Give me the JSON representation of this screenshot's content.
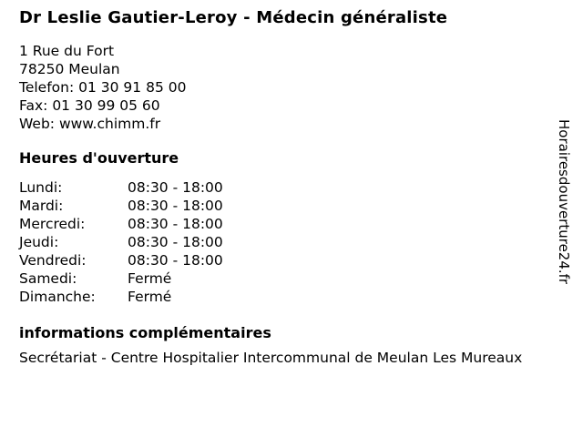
{
  "colors": {
    "background": "#ffffff",
    "text": "#000000"
  },
  "header": {
    "title": "Dr Leslie Gautier-Leroy - Médecin généraliste"
  },
  "contact": {
    "address_line1": "1 Rue du Fort",
    "address_line2": "78250 Meulan",
    "phone_line": "Telefon: 01 30 91 85 00",
    "fax_line": "Fax: 01 30 99 05 60",
    "web_line": "Web: www.chimm.fr"
  },
  "hours": {
    "heading": "Heures d'ouverture",
    "rows": [
      {
        "day": "Lundi:",
        "time": "08:30 - 18:00"
      },
      {
        "day": "Mardi:",
        "time": "08:30 - 18:00"
      },
      {
        "day": "Mercredi:",
        "time": "08:30 - 18:00"
      },
      {
        "day": "Jeudi:",
        "time": "08:30 - 18:00"
      },
      {
        "day": "Vendredi:",
        "time": "08:30 - 18:00"
      },
      {
        "day": "Samedi:",
        "time": "Fermé"
      },
      {
        "day": "Dimanche:",
        "time": "Fermé"
      }
    ]
  },
  "extra": {
    "heading": "informations complémentaires",
    "text": "Secrétariat - Centre Hospitalier Intercommunal de Meulan Les Mureaux"
  },
  "branding": {
    "watermark": "Horairesdouverture24.fr"
  }
}
